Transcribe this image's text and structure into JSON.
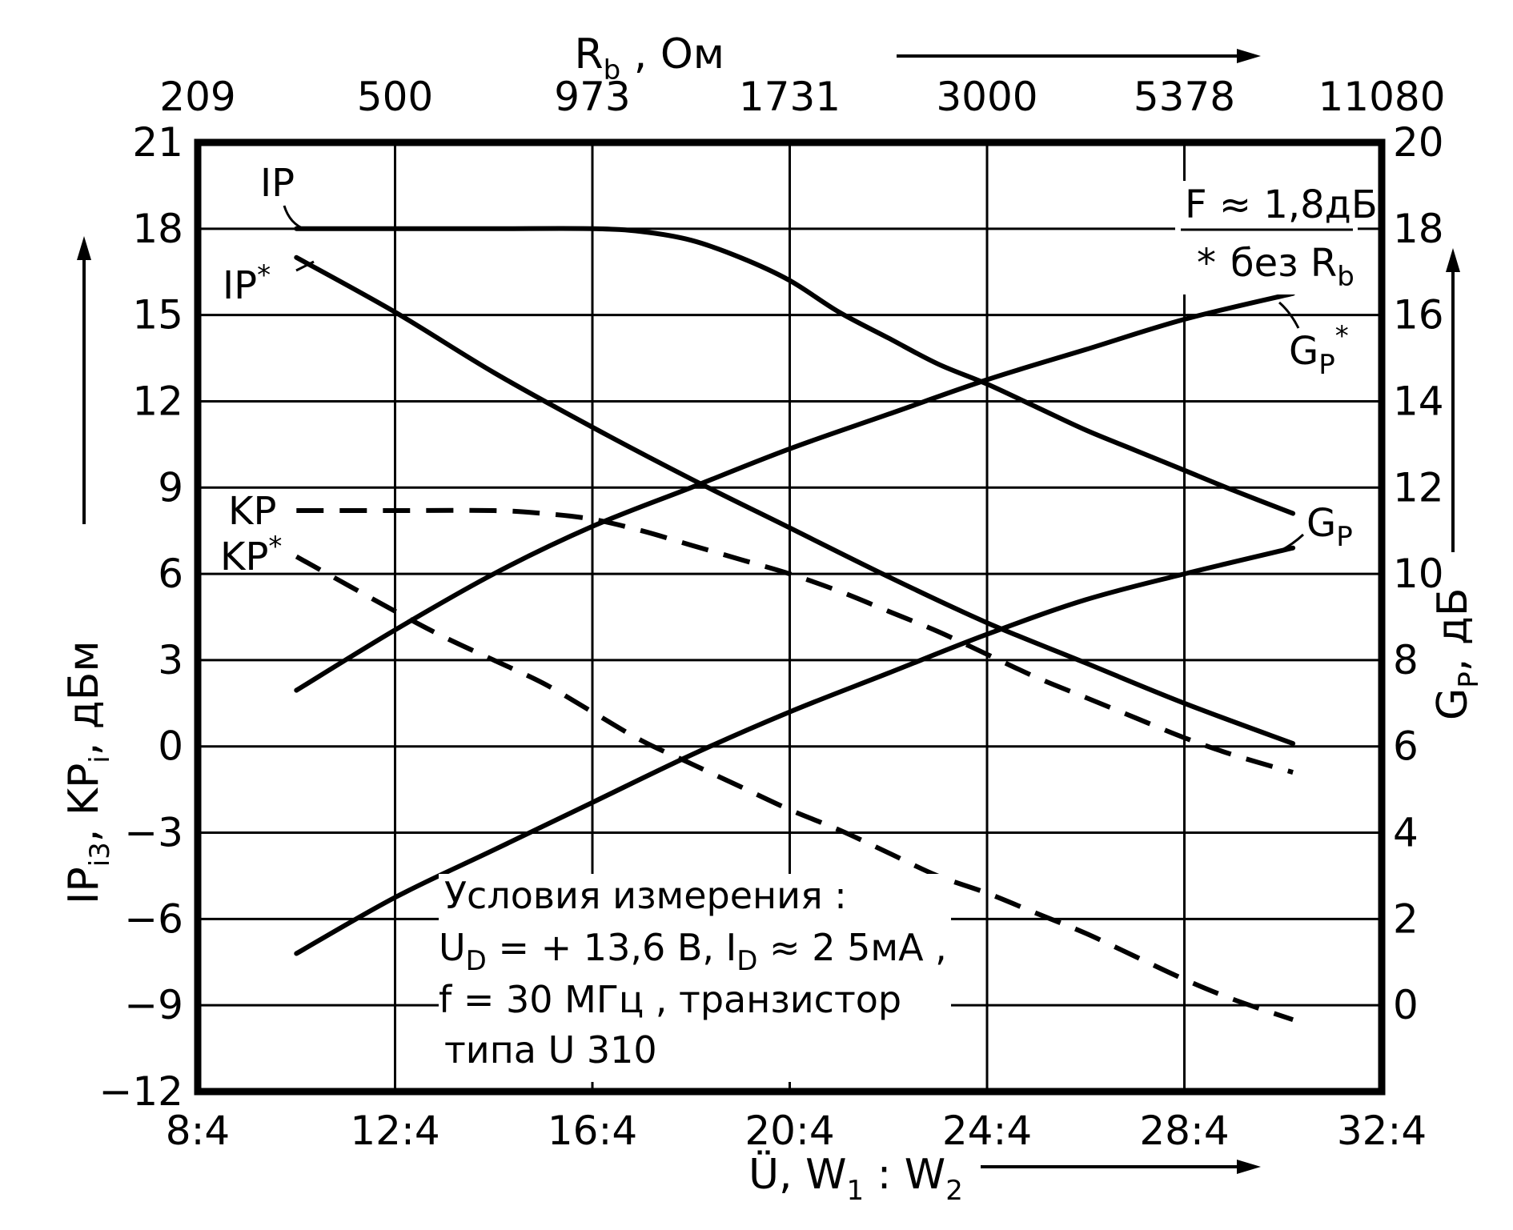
{
  "chart_data": {
    "type": "line",
    "x_axis": {
      "label_main": "Ü,  W",
      "label_sub1": "1",
      "label_mid": " : W",
      "label_sub2": "2",
      "min": 8,
      "max": 32,
      "ticks": [
        8,
        12,
        16,
        20,
        24,
        28,
        32
      ],
      "tick_labels": [
        "8:4",
        "12:4",
        "16:4",
        "20:4",
        "24:4",
        "28:4",
        "32:4"
      ]
    },
    "top_axis": {
      "label_main": "R",
      "label_sub": "b",
      "label_unit": " , Ом",
      "ticks": [
        8,
        12,
        16,
        20,
        24,
        28,
        32
      ],
      "tick_labels": [
        "209",
        "500",
        "973",
        "1731",
        "3000",
        "5378",
        "11080"
      ]
    },
    "left_axis": {
      "label_p1": "IP",
      "label_p1_sub": "i3",
      "label_p2": ",  KP",
      "label_p2_sub": "i",
      "label_p3": ",  дБм",
      "min": -12,
      "max": 21,
      "ticks": [
        21,
        18,
        15,
        12,
        9,
        6,
        3,
        0,
        -3,
        -6,
        -9,
        -12
      ],
      "tick_labels": [
        "21",
        "18",
        "15",
        "12",
        "9",
        "6",
        "3",
        "0",
        "−3",
        "−6",
        "−9",
        "−12"
      ]
    },
    "right_axis": {
      "label_main": "G",
      "label_sub": "P",
      "label_unit": ", дБ",
      "min": -2,
      "max": 20,
      "ticks": [
        20,
        18,
        16,
        14,
        12,
        10,
        8,
        6,
        4,
        2,
        0
      ],
      "tick_labels": [
        "20",
        "18",
        "16",
        "14",
        "12",
        "10",
        "8",
        "6",
        "4",
        "2",
        "0"
      ]
    },
    "series": [
      {
        "name": "IP",
        "axis": "left",
        "style": "solid",
        "points": [
          [
            10,
            18
          ],
          [
            12,
            18
          ],
          [
            14,
            18
          ],
          [
            16,
            18
          ],
          [
            17,
            17.9
          ],
          [
            18,
            17.6
          ],
          [
            19,
            17.0
          ],
          [
            20,
            16.2
          ],
          [
            21,
            15.1
          ],
          [
            22,
            14.2
          ],
          [
            23,
            13.3
          ],
          [
            24,
            12.6
          ],
          [
            25,
            11.8
          ],
          [
            26,
            11.0
          ],
          [
            27,
            10.3
          ],
          [
            28,
            9.6
          ],
          [
            29,
            8.9
          ],
          [
            30.2,
            8.1
          ]
        ]
      },
      {
        "name": "IP*",
        "axis": "left",
        "style": "solid",
        "points": [
          [
            10,
            17
          ],
          [
            12,
            15.1
          ],
          [
            14,
            13.0
          ],
          [
            16,
            11.1
          ],
          [
            18,
            9.3
          ],
          [
            20,
            7.6
          ],
          [
            22,
            5.9
          ],
          [
            24,
            4.3
          ],
          [
            26,
            2.9
          ],
          [
            28,
            1.5
          ],
          [
            30.2,
            0.1
          ]
        ]
      },
      {
        "name": "KP",
        "axis": "left",
        "style": "dashed",
        "points": [
          [
            10,
            8.2
          ],
          [
            12,
            8.2
          ],
          [
            14,
            8.2
          ],
          [
            15,
            8.1
          ],
          [
            16,
            7.9
          ],
          [
            17,
            7.5
          ],
          [
            18,
            7.0
          ],
          [
            19,
            6.5
          ],
          [
            20,
            6.0
          ],
          [
            21,
            5.4
          ],
          [
            22,
            4.7
          ],
          [
            23,
            4.0
          ],
          [
            24,
            3.2
          ],
          [
            25,
            2.4
          ],
          [
            26,
            1.7
          ],
          [
            27,
            1.0
          ],
          [
            28,
            0.3
          ],
          [
            29,
            -0.3
          ],
          [
            30.2,
            -0.9
          ]
        ]
      },
      {
        "name": "KP*",
        "axis": "left",
        "style": "dashed",
        "points": [
          [
            10,
            6.6
          ],
          [
            12,
            4.7
          ],
          [
            13,
            3.8
          ],
          [
            14,
            3.0
          ],
          [
            15,
            2.2
          ],
          [
            16,
            1.2
          ],
          [
            17,
            0.2
          ],
          [
            18,
            -0.6
          ],
          [
            19,
            -1.4
          ],
          [
            20,
            -2.2
          ],
          [
            21,
            -2.9
          ],
          [
            22,
            -3.7
          ],
          [
            23,
            -4.5
          ],
          [
            24,
            -5.1
          ],
          [
            25,
            -5.8
          ],
          [
            26,
            -6.5
          ],
          [
            27,
            -7.3
          ],
          [
            28,
            -8.1
          ],
          [
            29,
            -8.8
          ],
          [
            30.2,
            -9.5
          ]
        ]
      },
      {
        "name": "G_P*",
        "axis": "right",
        "style": "solid",
        "points": [
          [
            10,
            7.3
          ],
          [
            12,
            8.7
          ],
          [
            14,
            10.0
          ],
          [
            16,
            11.1
          ],
          [
            18,
            12.0
          ],
          [
            20,
            12.9
          ],
          [
            22,
            13.7
          ],
          [
            24,
            14.5
          ],
          [
            26,
            15.2
          ],
          [
            28,
            15.9
          ],
          [
            30.2,
            16.5
          ]
        ]
      },
      {
        "name": "G_P",
        "axis": "right",
        "style": "solid",
        "points": [
          [
            10,
            1.2
          ],
          [
            12,
            2.5
          ],
          [
            14,
            3.6
          ],
          [
            16,
            4.7
          ],
          [
            18,
            5.8
          ],
          [
            20,
            6.8
          ],
          [
            22,
            7.7
          ],
          [
            24,
            8.6
          ],
          [
            26,
            9.4
          ],
          [
            28,
            10.0
          ],
          [
            30.2,
            10.6
          ]
        ]
      }
    ],
    "curve_labels": {
      "ip": "IP",
      "ip_star": "IP",
      "kp": "KP",
      "kp_star": "KP",
      "gp": "G",
      "gp_sub": "P",
      "gp_star": "G",
      "gp_star_sub": "P",
      "star": "*"
    },
    "annotations": {
      "noise_figure": "F ≈ 1,8дБ",
      "star_note_star": "*",
      "star_note_text": "без R",
      "star_note_sub": "b",
      "conditions_line1": "Условия  измерения :",
      "conditions_line2_a": "U",
      "conditions_line2_sub_a": "D",
      "conditions_line2_b": " = + 13,6 В,  I",
      "conditions_line2_sub_b": "D",
      "conditions_line2_c": " ≈ 2 5мА ,",
      "conditions_line3": "f = 30 МГц ,    транзистор",
      "conditions_line4": "типа  U 310"
    },
    "grid": true
  }
}
